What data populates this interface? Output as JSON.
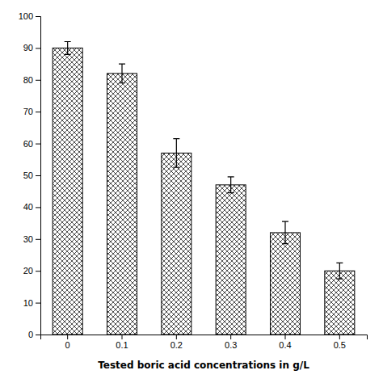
{
  "chart_data": {
    "type": "bar",
    "xlabel": "Tested boric acid concentrations in g/L",
    "categories": [
      "0",
      "0.1",
      "0.2",
      "0.3",
      "0.4",
      "0.5"
    ],
    "values": [
      90.0,
      82.0,
      57.0,
      47.0,
      32.0,
      20.0
    ],
    "errors": [
      2.0,
      3.0,
      4.5,
      2.5,
      3.5,
      2.5
    ],
    "color": "white",
    "ylim": [
      0,
      100
    ],
    "yticks": [
      0,
      10,
      20,
      30,
      40,
      50,
      60,
      70,
      80,
      90,
      100
    ],
    "grid": false
  }
}
